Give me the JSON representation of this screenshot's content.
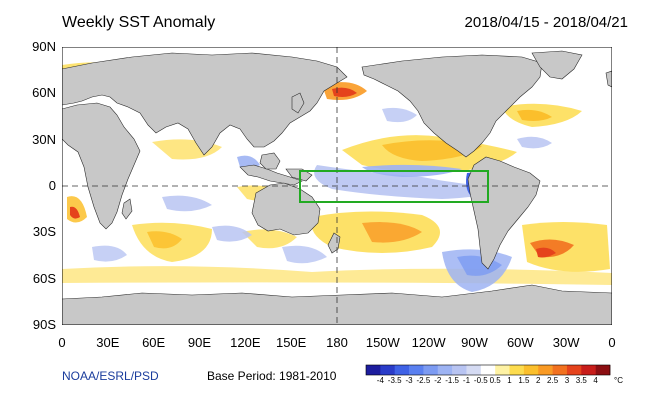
{
  "title": "Weekly SST Anomaly",
  "date_range": "2018/04/15 - 2018/04/21",
  "credit": "NOAA/ESRL/PSD",
  "base_period": "Base Period: 1981-2010",
  "map": {
    "lat_labels": [
      "90N",
      "60N",
      "30N",
      "0",
      "30S",
      "60S",
      "90S"
    ],
    "lon_labels": [
      "0",
      "30E",
      "60E",
      "90E",
      "120E",
      "150E",
      "180",
      "150W",
      "120W",
      "90W",
      "60W",
      "30W",
      "0"
    ],
    "highlight_box": {
      "lon_range": [
        "155E",
        "85W"
      ],
      "lat_range": [
        "10N",
        "10S"
      ],
      "color": "#22aa22"
    }
  },
  "colorbar": {
    "tick_labels": [
      "-4",
      "-3.5",
      "-3",
      "-2.5",
      "-2",
      "-1.5",
      "-1",
      "-0.5",
      "0.5",
      "1",
      "1.5",
      "2",
      "2.5",
      "3",
      "3.5",
      "4"
    ],
    "unit": "°C",
    "colors": [
      "#1d1d9e",
      "#2a3cc9",
      "#3f62e6",
      "#5a80f0",
      "#7c9bf2",
      "#9db3f3",
      "#b8c4f2",
      "#d5dbf3",
      "#ffffff",
      "#fef2a4",
      "#fddc4e",
      "#fbbf2c",
      "#f99a24",
      "#f2711f",
      "#e5431c",
      "#c81d1a",
      "#8c0e12"
    ]
  }
}
